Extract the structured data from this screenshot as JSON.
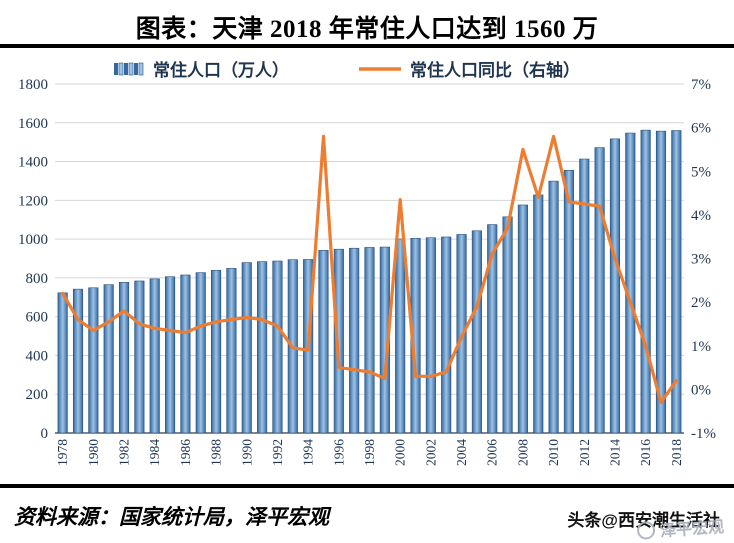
{
  "page": {
    "title": "图表：天津 2018 年常住人口达到 1560 万",
    "source_note": "资料来源：国家统计局，泽平宏观",
    "credit": "头条@西安潮生活社",
    "watermark": "泽平宏观"
  },
  "legend": {
    "bar_label": "常住人口（万人）",
    "line_label": "常住人口同比（右轴）"
  },
  "colors": {
    "bar_center": "#9dc3e6",
    "bar_edge": "#35689f",
    "bar_stroke": "#2a517c",
    "line": "#ED7D31",
    "grid": "#d6d6d6",
    "axis_text": "#1f3550"
  },
  "chart_data": {
    "type": "bar",
    "title": "图表：天津 2018 年常住人口达到 1560 万",
    "xlabel": "",
    "ylabel_left": "常住人口（万人）",
    "ylabel_right": "常住人口同比（%）",
    "grid": true,
    "legend_position": "top",
    "x_tick_every": 2,
    "categories": [
      "1978",
      "1979",
      "1980",
      "1981",
      "1982",
      "1983",
      "1984",
      "1985",
      "1986",
      "1987",
      "1988",
      "1989",
      "1990",
      "1991",
      "1992",
      "1993",
      "1994",
      "1995",
      "1996",
      "1997",
      "1998",
      "1999",
      "2000",
      "2001",
      "2002",
      "2003",
      "2004",
      "2005",
      "2006",
      "2007",
      "2008",
      "2009",
      "2010",
      "2011",
      "2012",
      "2013",
      "2014",
      "2015",
      "2016",
      "2017",
      "2018"
    ],
    "y_left": {
      "min": 0,
      "max": 1800,
      "step": 200
    },
    "y_right": {
      "min": -1,
      "max": 7,
      "step": 1,
      "suffix": "%"
    },
    "series": [
      {
        "name": "常住人口（万人）",
        "type": "bar",
        "axis": "left",
        "values": [
          723,
          742,
          749,
          765,
          777,
          784,
          795,
          806,
          815,
          827,
          839,
          849,
          879,
          884,
          887,
          894,
          895,
          942,
          948,
          953,
          957,
          959,
          1001,
          1004,
          1007,
          1011,
          1024,
          1043,
          1075,
          1115,
          1176,
          1228,
          1299,
          1355,
          1413,
          1472,
          1517,
          1547,
          1562,
          1557,
          1560
        ]
      },
      {
        "name": "常住人口同比（右轴）",
        "type": "line",
        "axis": "right",
        "values": [
          2.2,
          1.6,
          1.35,
          1.55,
          1.8,
          1.5,
          1.4,
          1.35,
          1.3,
          1.45,
          1.55,
          1.6,
          1.65,
          1.6,
          1.45,
          0.95,
          0.9,
          5.8,
          0.5,
          0.45,
          0.4,
          0.25,
          4.35,
          0.3,
          0.3,
          0.4,
          1.2,
          1.9,
          3.1,
          3.7,
          5.5,
          4.4,
          5.8,
          4.3,
          4.25,
          4.2,
          3.0,
          2.0,
          1.0,
          -0.3,
          0.2
        ]
      }
    ]
  }
}
